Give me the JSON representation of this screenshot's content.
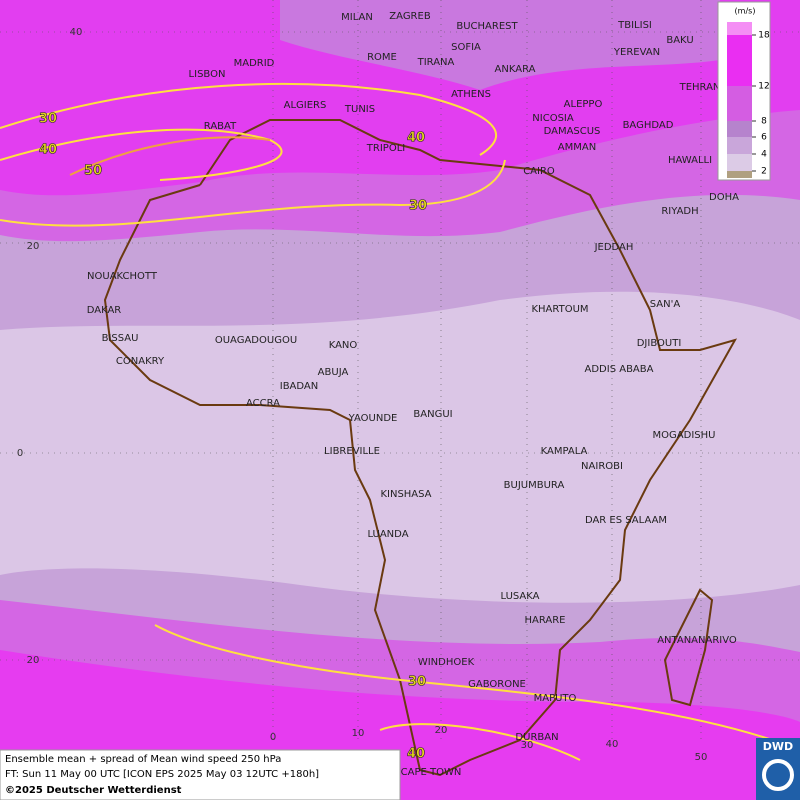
{
  "legend": {
    "unit": "(m/s)",
    "ticks": [
      2,
      4,
      6,
      8,
      12,
      18
    ],
    "colors": [
      "#b0a080",
      "#dccbe6",
      "#c9a6da",
      "#b683cd",
      "#d45de2",
      "#ea2ef2",
      "#f48ef4"
    ]
  },
  "cities": [
    "MILAN",
    "ZAGREB",
    "BUCHAREST",
    "TBILISI",
    "BAKU",
    "ROME",
    "SOFIA",
    "YEREVAN",
    "MADRID",
    "TIRANA",
    "ANKARA",
    "TEHRAN",
    "LISBON",
    "ALGIERS",
    "TUNIS",
    "ATHENS",
    "ALEPPO",
    "RABAT",
    "NICOSIA",
    "BAGHDAD",
    "DAMASCUS",
    "TRIPOLI",
    "AMMAN",
    "HAWALLI",
    "CAIRO",
    "DOHA",
    "RIYADH",
    "JEDDAH",
    "NOUAKCHOTT",
    "SAN'A",
    "KHARTOUM",
    "DAKAR",
    "BISSAU",
    "OUAGADOUGOU",
    "DJIBOUTI",
    "KANO",
    "CONAKRY",
    "ADDIS ABABA",
    "ABUJA",
    "IBADAN",
    "ACCRA",
    "YAOUNDE",
    "BANGUI",
    "MOGADISHU",
    "LIBREVILLE",
    "KAMPALA",
    "NAIROBI",
    "BUJUMBURA",
    "KINSHASA",
    "DAR ES SALAAM",
    "LUANDA",
    "LUSAKA",
    "HARARE",
    "ANTANANARIVO",
    "WINDHOEK",
    "GABORONE",
    "MAPUTO",
    "DURBAN",
    "CAPE TOWN"
  ],
  "contour_labels": [
    30,
    40,
    50,
    40,
    30,
    30,
    40
  ],
  "lat_labels": [
    40,
    20,
    0,
    20
  ],
  "lon_labels": [
    0,
    10,
    20,
    30,
    40,
    50
  ],
  "footer": {
    "line1": "Ensemble mean + spread of Mean wind speed 250 hPa",
    "line2": "FT: Sun 11 May 00 UTC [ICON EPS 2025 May 03 12UTC +180h]",
    "line3": "©2025 Deutscher Wetterdienst"
  },
  "logo": "DWD"
}
